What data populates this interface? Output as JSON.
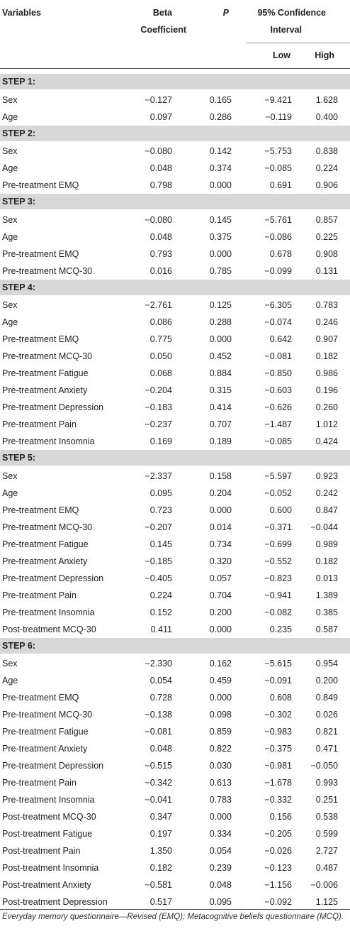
{
  "header": {
    "variables": "Variables",
    "beta_line1": "Beta",
    "beta_line2": "Coefficient",
    "p": "P",
    "ci_line1": "95% Confidence",
    "ci_line2": "Interval",
    "low": "Low",
    "high": "High"
  },
  "steps": [
    {
      "label": "STEP 1:",
      "rows": [
        {
          "variable": "Sex",
          "beta": "−0.127",
          "p": "0.165",
          "low": "−9.421",
          "high": "1.628"
        },
        {
          "variable": "Age",
          "beta": "0.097",
          "p": "0.286",
          "low": "−0.119",
          "high": "0.400"
        }
      ]
    },
    {
      "label": "STEP 2:",
      "rows": [
        {
          "variable": "Sex",
          "beta": "−0.080",
          "p": "0.142",
          "low": "−5.753",
          "high": "0.838"
        },
        {
          "variable": "Age",
          "beta": "0.048",
          "p": "0.374",
          "low": "−0.085",
          "high": "0.224"
        },
        {
          "variable": "Pre-treatment EMQ",
          "beta": "0.798",
          "p": "0.000",
          "low": "0.691",
          "high": "0.906"
        }
      ]
    },
    {
      "label": "STEP 3:",
      "rows": [
        {
          "variable": "Sex",
          "beta": "−0.080",
          "p": "0.145",
          "low": "−5.761",
          "high": "0.857"
        },
        {
          "variable": "Age",
          "beta": "0.048",
          "p": "0.375",
          "low": "−0.086",
          "high": "0.225"
        },
        {
          "variable": "Pre-treatment EMQ",
          "beta": "0.793",
          "p": "0.000",
          "low": "0.678",
          "high": "0.908"
        },
        {
          "variable": "Pre-treatment MCQ-30",
          "beta": "0.016",
          "p": "0.785",
          "low": "−0.099",
          "high": "0.131"
        }
      ]
    },
    {
      "label": "STEP 4:",
      "rows": [
        {
          "variable": "Sex",
          "beta": "−2.761",
          "p": "0.125",
          "low": "−6.305",
          "high": "0.783"
        },
        {
          "variable": "Age",
          "beta": "0.086",
          "p": "0.288",
          "low": "−0.074",
          "high": "0.246"
        },
        {
          "variable": "Pre-treatment EMQ",
          "beta": "0.775",
          "p": "0.000",
          "low": "0.642",
          "high": "0.907"
        },
        {
          "variable": "Pre-treatment MCQ-30",
          "beta": "0.050",
          "p": "0.452",
          "low": "−0.081",
          "high": "0.182"
        },
        {
          "variable": "Pre-treatment Fatigue",
          "beta": "0.068",
          "p": "0.884",
          "low": "−0.850",
          "high": "0.986"
        },
        {
          "variable": "Pre-treatment Anxiety",
          "beta": "−0.204",
          "p": "0.315",
          "low": "−0.603",
          "high": "0.196"
        },
        {
          "variable": "Pre-treatment Depression",
          "beta": "−0.183",
          "p": "0.414",
          "low": "−0.626",
          "high": "0.260"
        },
        {
          "variable": "Pre-treatment Pain",
          "beta": "−0.237",
          "p": "0.707",
          "low": "−1.487",
          "high": "1.012"
        },
        {
          "variable": "Pre-treatment Insomnia",
          "beta": "0.169",
          "p": "0.189",
          "low": "−0.085",
          "high": "0.424"
        }
      ]
    },
    {
      "label": "STEP 5:",
      "rows": [
        {
          "variable": "Sex",
          "beta": "−2.337",
          "p": "0.158",
          "low": "−5.597",
          "high": "0.923"
        },
        {
          "variable": "Age",
          "beta": "0.095",
          "p": "0.204",
          "low": "−0.052",
          "high": "0.242"
        },
        {
          "variable": "Pre-treatment EMQ",
          "beta": "0.723",
          "p": "0.000",
          "low": "0.600",
          "high": "0.847"
        },
        {
          "variable": "Pre-treatment MCQ-30",
          "beta": "−0.207",
          "p": "0.014",
          "low": "−0.371",
          "high": "−0.044"
        },
        {
          "variable": "Pre-treatment Fatigue",
          "beta": "0.145",
          "p": "0.734",
          "low": "−0.699",
          "high": "0.989"
        },
        {
          "variable": "Pre-treatment Anxiety",
          "beta": "−0.185",
          "p": "0.320",
          "low": "−0.552",
          "high": "0.182"
        },
        {
          "variable": "Pre-treatment Depression",
          "beta": "−0.405",
          "p": "0.057",
          "low": "−0.823",
          "high": "0.013"
        },
        {
          "variable": "Pre-treatment Pain",
          "beta": "0.224",
          "p": "0.704",
          "low": "−0.941",
          "high": "1.389"
        },
        {
          "variable": "Pre-treatment Insomnia",
          "beta": "0.152",
          "p": "0.200",
          "low": "−0.082",
          "high": "0.385"
        },
        {
          "variable": "Post-treatment MCQ-30",
          "beta": "0.411",
          "p": "0.000",
          "low": "0.235",
          "high": "0.587"
        }
      ]
    },
    {
      "label": "STEP 6:",
      "rows": [
        {
          "variable": "Sex",
          "beta": "−2.330",
          "p": "0.162",
          "low": "−5.615",
          "high": "0.954"
        },
        {
          "variable": "Age",
          "beta": "0.054",
          "p": "0.459",
          "low": "−0.091",
          "high": "0.200"
        },
        {
          "variable": "Pre-treatment EMQ",
          "beta": "0.728",
          "p": "0.000",
          "low": "0.608",
          "high": "0.849"
        },
        {
          "variable": "Pre-treatment MCQ-30",
          "beta": "−0.138",
          "p": "0.098",
          "low": "−0.302",
          "high": "0.026"
        },
        {
          "variable": "Pre-treatment Fatigue",
          "beta": "−0.081",
          "p": "0.859",
          "low": "−0.983",
          "high": "0.821"
        },
        {
          "variable": "Pre-treatment Anxiety",
          "beta": "0.048",
          "p": "0.822",
          "low": "−0.375",
          "high": "0.471"
        },
        {
          "variable": "Pre-treatment Depression",
          "beta": "−0.515",
          "p": "0.030",
          "low": "−0.981",
          "high": "−0.050"
        },
        {
          "variable": "Pre-treatment Pain",
          "beta": "−0.342",
          "p": "0.613",
          "low": "−1.678",
          "high": "0.993"
        },
        {
          "variable": "Pre-treatment Insomnia",
          "beta": "−0.041",
          "p": "0.783",
          "low": "−0.332",
          "high": "0.251"
        },
        {
          "variable": "Post-treatment MCQ-30",
          "beta": "0.347",
          "p": "0.000",
          "low": "0.156",
          "high": "0.538"
        },
        {
          "variable": "Post-treatment Fatigue",
          "beta": "0.197",
          "p": "0.334",
          "low": "−0.205",
          "high": "0.599"
        },
        {
          "variable": "Post-treatment Pain",
          "beta": "1.350",
          "p": "0.054",
          "low": "−0.026",
          "high": "2.727"
        },
        {
          "variable": "Post-treatment Insomnia",
          "beta": "0.182",
          "p": "0.239",
          "low": "−0.123",
          "high": "0.487"
        },
        {
          "variable": "Post-treatment Anxiety",
          "beta": "−0.581",
          "p": "0.048",
          "low": "−1.156",
          "high": "−0.006"
        },
        {
          "variable": "Post-treatment Depression",
          "beta": "0.517",
          "p": "0.095",
          "low": "−0.092",
          "high": "1.125"
        }
      ]
    }
  ],
  "footnote": "Everyday memory questionnaire—Revised (EMQ); Metacognitive beliefs questionnaire (MCQ)."
}
